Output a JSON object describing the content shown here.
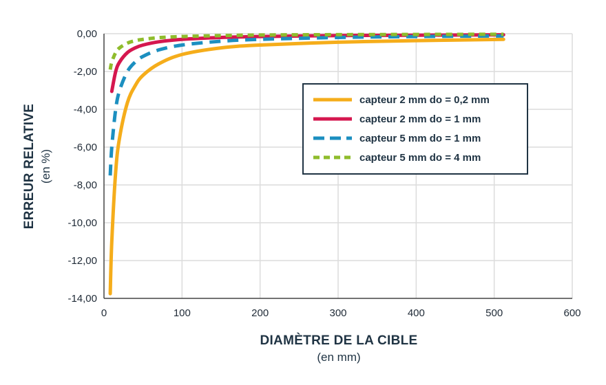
{
  "chart_data": {
    "type": "line",
    "xlabel": "DIAMÈTRE DE LA CIBLE",
    "xlabel_unit": "(en mm)",
    "ylabel": "ERREUR RELATIVE",
    "ylabel_unit": "(en %)",
    "xlim": [
      0,
      600
    ],
    "ylim": [
      -14,
      0
    ],
    "x_ticks": [
      "0",
      "100",
      "200",
      "300",
      "400",
      "500",
      "600"
    ],
    "y_ticks": [
      "0,00",
      "-2,00",
      "-4,00",
      "-6,00",
      "-8,00",
      "-10,00",
      "-12,00",
      "-14,00"
    ],
    "grid": true,
    "legend_position": "center-right",
    "series": [
      {
        "name": "capteur 2 mm do = 0,2 mm",
        "color": "#f5ad1b",
        "style": "solid",
        "x": [
          8,
          10,
          15,
          20,
          30,
          40,
          50,
          70,
          100,
          150,
          200,
          300,
          400,
          512
        ],
        "y": [
          -13.75,
          -11.0,
          -7.3,
          -5.5,
          -3.65,
          -2.75,
          -2.2,
          -1.6,
          -1.1,
          -0.75,
          -0.6,
          -0.45,
          -0.37,
          -0.3
        ]
      },
      {
        "name": "capteur 2 mm do = 1 mm",
        "color": "#d5174f",
        "style": "solid",
        "x": [
          10,
          15,
          20,
          30,
          40,
          50,
          70,
          100,
          150,
          200,
          300,
          400,
          512
        ],
        "y": [
          -3.05,
          -2.0,
          -1.5,
          -1.0,
          -0.75,
          -0.6,
          -0.43,
          -0.3,
          -0.2,
          -0.15,
          -0.1,
          -0.08,
          -0.06
        ]
      },
      {
        "name": "capteur 5 mm do = 1 mm",
        "color": "#1c8fc0",
        "style": "dashed",
        "x": [
          8,
          10,
          15,
          20,
          30,
          40,
          50,
          70,
          100,
          150,
          200,
          300,
          400,
          512
        ],
        "y": [
          -7.5,
          -6.0,
          -4.0,
          -3.0,
          -2.0,
          -1.5,
          -1.2,
          -0.86,
          -0.6,
          -0.4,
          -0.3,
          -0.2,
          -0.15,
          -0.12
        ]
      },
      {
        "name": "capteur 5 mm do = 4 mm",
        "color": "#8fbc2c",
        "style": "dashed",
        "x": [
          8,
          10,
          15,
          20,
          30,
          40,
          50,
          70,
          100,
          150,
          200,
          300,
          400,
          512
        ],
        "y": [
          -1.9,
          -1.5,
          -1.0,
          -0.75,
          -0.5,
          -0.37,
          -0.3,
          -0.21,
          -0.15,
          -0.1,
          -0.07,
          -0.05,
          -0.04,
          -0.03
        ]
      }
    ]
  }
}
